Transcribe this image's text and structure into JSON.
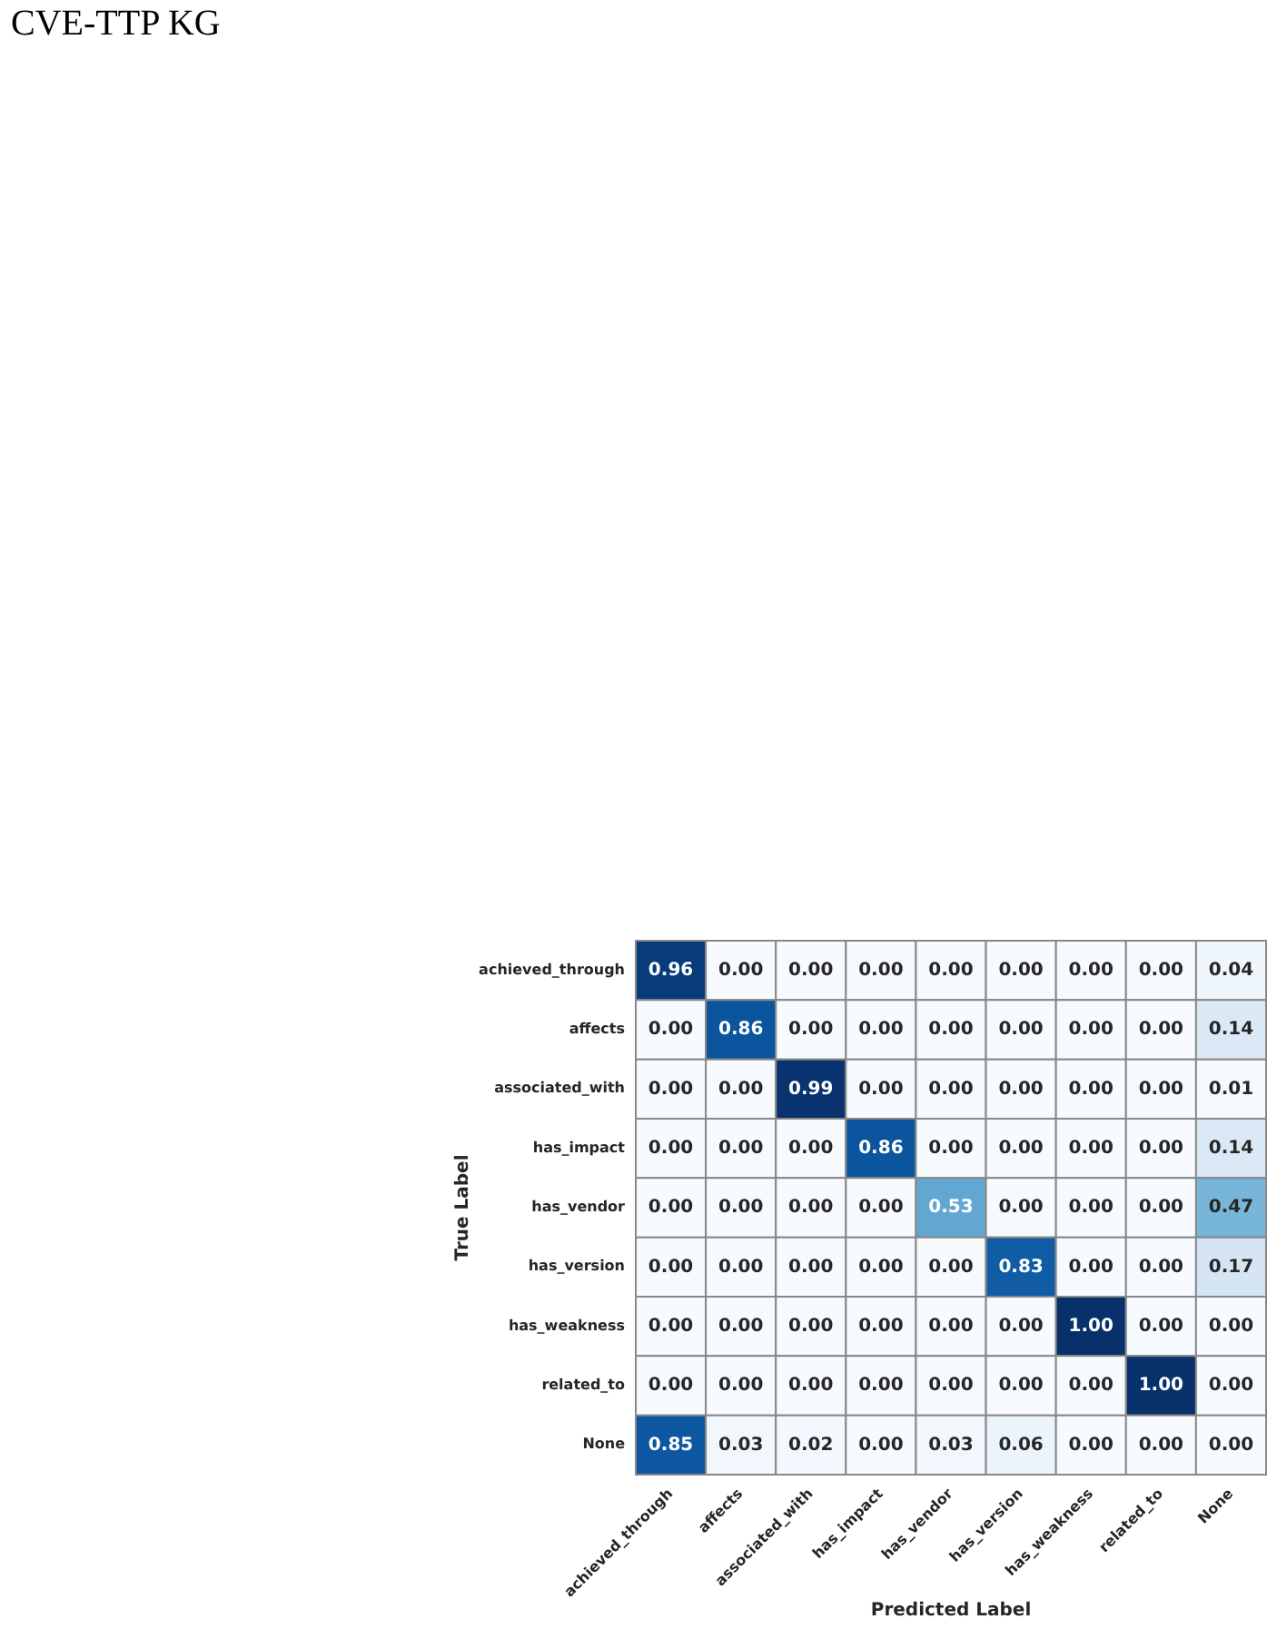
{
  "chart_data": {
    "type": "heatmap",
    "title": "CVE-TTP KG",
    "xlabel": "Predicted Label",
    "ylabel": "True Label",
    "categories": [
      "achieved_through",
      "affects",
      "associated_with",
      "has_impact",
      "has_vendor",
      "has_version",
      "has_weakness",
      "related_to",
      "None"
    ],
    "y_categories": [
      "achieved_through",
      "affects",
      "associated_with",
      "has_impact",
      "has_vendor",
      "has_version",
      "has_weakness",
      "related_to",
      "None"
    ],
    "cells": [
      [
        0.96,
        0.0,
        0.0,
        0.0,
        0.0,
        0.0,
        0.0,
        0.0,
        0.04
      ],
      [
        0.0,
        0.86,
        0.0,
        0.0,
        0.0,
        0.0,
        0.0,
        0.0,
        0.14
      ],
      [
        0.0,
        0.0,
        0.99,
        0.0,
        0.0,
        0.0,
        0.0,
        0.0,
        0.01
      ],
      [
        0.0,
        0.0,
        0.0,
        0.86,
        0.0,
        0.0,
        0.0,
        0.0,
        0.14
      ],
      [
        0.0,
        0.0,
        0.0,
        0.0,
        0.53,
        0.0,
        0.0,
        0.0,
        0.47
      ],
      [
        0.0,
        0.0,
        0.0,
        0.0,
        0.0,
        0.83,
        0.0,
        0.0,
        0.17
      ],
      [
        0.0,
        0.0,
        0.0,
        0.0,
        0.0,
        0.0,
        1.0,
        0.0,
        0.0
      ],
      [
        0.0,
        0.0,
        0.0,
        0.0,
        0.0,
        0.0,
        0.0,
        1.0,
        0.0
      ],
      [
        0.85,
        0.03,
        0.02,
        0.0,
        0.03,
        0.06,
        0.0,
        0.0,
        0.0
      ]
    ],
    "cell_labels": [
      [
        "0.96",
        "0.00",
        "0.00",
        "0.00",
        "0.00",
        "0.00",
        "0.00",
        "0.00",
        "0.04"
      ],
      [
        "0.00",
        "0.86",
        "0.00",
        "0.00",
        "0.00",
        "0.00",
        "0.00",
        "0.00",
        "0.14"
      ],
      [
        "0.00",
        "0.00",
        "0.99",
        "0.00",
        "0.00",
        "0.00",
        "0.00",
        "0.00",
        "0.01"
      ],
      [
        "0.00",
        "0.00",
        "0.00",
        "0.86",
        "0.00",
        "0.00",
        "0.00",
        "0.00",
        "0.14"
      ],
      [
        "0.00",
        "0.00",
        "0.00",
        "0.00",
        "0.53",
        "0.00",
        "0.00",
        "0.00",
        "0.47"
      ],
      [
        "0.00",
        "0.00",
        "0.00",
        "0.00",
        "0.00",
        "0.83",
        "0.00",
        "0.00",
        "0.17"
      ],
      [
        "0.00",
        "0.00",
        "0.00",
        "0.00",
        "0.00",
        "0.00",
        "1.00",
        "0.00",
        "0.00"
      ],
      [
        "0.00",
        "0.00",
        "0.00",
        "0.00",
        "0.00",
        "0.00",
        "0.00",
        "1.00",
        "0.00"
      ],
      [
        "0.85",
        "0.03",
        "0.02",
        "0.00",
        "0.03",
        "0.06",
        "0.00",
        "0.00",
        "0.00"
      ]
    ],
    "data_labels": true,
    "legend": false
  }
}
